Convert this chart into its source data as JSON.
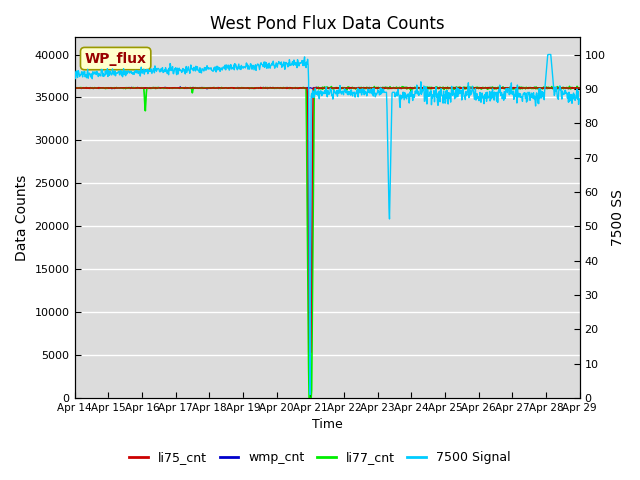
{
  "title": "West Pond Flux Data Counts",
  "xlabel": "Time",
  "ylabel_left": "Data Counts",
  "ylabel_right": "7500 SS",
  "ylim_left": [
    0,
    42000
  ],
  "ylim_right": [
    0,
    105
  ],
  "annotation_text": "WP_flux",
  "background_color": "#e0e0e0",
  "legend_entries": [
    "li75_cnt",
    "wmp_cnt",
    "li77_cnt",
    "7500 Signal"
  ],
  "legend_colors": [
    "#cc0000",
    "#0000cc",
    "#00cc00",
    "#00cccc"
  ],
  "x_ticklabels": [
    "Apr 14",
    "Apr 15",
    "Apr 16",
    "Apr 17",
    "Apr 18",
    "Apr 19",
    "Apr 20",
    "Apr 21",
    "Apr 22",
    "Apr 23",
    "Apr 24",
    "Apr 25",
    "Apr 26",
    "Apr 27",
    "Apr 28",
    "Apr 29"
  ],
  "yticks_left": [
    0,
    5000,
    10000,
    15000,
    20000,
    25000,
    30000,
    35000,
    40000
  ],
  "yticks_right": [
    0,
    10,
    20,
    30,
    40,
    50,
    60,
    70,
    80,
    90,
    100
  ]
}
